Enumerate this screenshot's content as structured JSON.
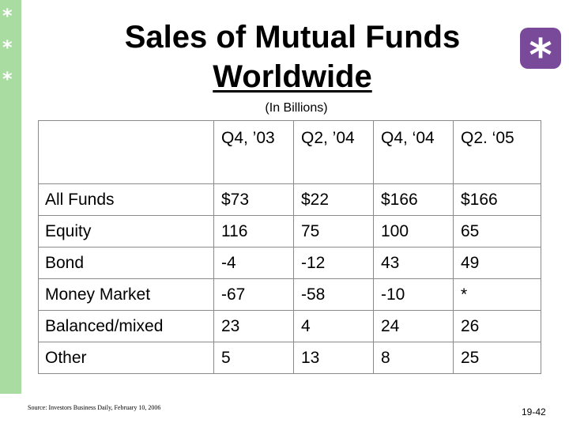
{
  "decor": {
    "stars": [
      "*",
      "*",
      "*"
    ],
    "corner_star": "*"
  },
  "slide": {
    "title_line1": "Sales of Mutual Funds",
    "title_line2": "Worldwide",
    "subtitle": "(In Billions)",
    "source": "Source: Investors Business Daily, February 10, 2006",
    "page_number": "19-42"
  },
  "table": {
    "corner": "",
    "columns": [
      "Q4, ’03",
      "Q2, ’04",
      "Q4, ‘04",
      "Q2. ‘05"
    ],
    "rows": [
      {
        "label": "All Funds",
        "values": [
          "$73",
          "$22",
          "$166",
          "$166"
        ]
      },
      {
        "label": "Equity",
        "values": [
          "116",
          "75",
          "100",
          "65"
        ]
      },
      {
        "label": "Bond",
        "values": [
          "-4",
          "-12",
          "43",
          "49"
        ]
      },
      {
        "label": "Money Market",
        "values": [
          "-67",
          "-58",
          "-10",
          "*"
        ]
      },
      {
        "label": "Balanced/mixed",
        "values": [
          "23",
          "4",
          "24",
          "26"
        ]
      },
      {
        "label": "Other",
        "values": [
          "5",
          "13",
          "8",
          "25"
        ]
      }
    ]
  },
  "colors": {
    "left_bar": "#a8dca0",
    "corner_badge": "#7a4a9a",
    "table_border": "#8a8a8a"
  }
}
